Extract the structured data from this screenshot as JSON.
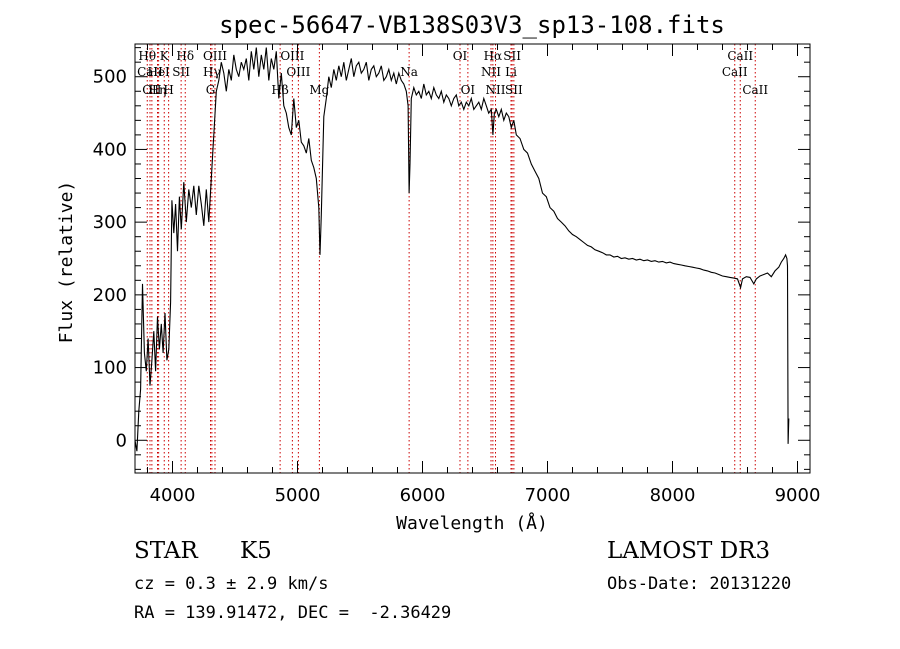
{
  "chart_data": {
    "type": "line",
    "title": "spec-56647-VB138S03V3_sp13-108.fits",
    "xlabel": "Wavelength (Å)",
    "ylabel": "Flux (relative)",
    "xlim": [
      3700,
      9100
    ],
    "ylim": [
      -45,
      545
    ],
    "xticks": [
      4000,
      5000,
      6000,
      7000,
      8000,
      9000
    ],
    "yticks": [
      0,
      100,
      200,
      300,
      400,
      500
    ],
    "line_color": "#000000",
    "marker_color": "#cc0000",
    "series": [
      {
        "name": "flux",
        "points": [
          [
            3700,
            0
          ],
          [
            3715,
            -15
          ],
          [
            3730,
            40
          ],
          [
            3745,
            70
          ],
          [
            3760,
            215
          ],
          [
            3775,
            120
          ],
          [
            3790,
            95
          ],
          [
            3805,
            140
          ],
          [
            3820,
            75
          ],
          [
            3835,
            110
          ],
          [
            3850,
            150
          ],
          [
            3865,
            95
          ],
          [
            3880,
            170
          ],
          [
            3895,
            125
          ],
          [
            3910,
            160
          ],
          [
            3925,
            120
          ],
          [
            3940,
            175
          ],
          [
            3955,
            110
          ],
          [
            3970,
            125
          ],
          [
            3985,
            190
          ],
          [
            3995,
            330
          ],
          [
            4010,
            285
          ],
          [
            4025,
            325
          ],
          [
            4040,
            260
          ],
          [
            4055,
            335
          ],
          [
            4070,
            290
          ],
          [
            4090,
            355
          ],
          [
            4110,
            300
          ],
          [
            4130,
            345
          ],
          [
            4150,
            320
          ],
          [
            4170,
            350
          ],
          [
            4190,
            310
          ],
          [
            4210,
            350
          ],
          [
            4230,
            325
          ],
          [
            4250,
            295
          ],
          [
            4270,
            345
          ],
          [
            4290,
            300
          ],
          [
            4310,
            360
          ],
          [
            4330,
            420
          ],
          [
            4350,
            480
          ],
          [
            4370,
            495
          ],
          [
            4390,
            520
          ],
          [
            4410,
            505
          ],
          [
            4430,
            480
          ],
          [
            4450,
            510
          ],
          [
            4470,
            495
          ],
          [
            4490,
            530
          ],
          [
            4510,
            510
          ],
          [
            4530,
            500
          ],
          [
            4550,
            520
          ],
          [
            4570,
            510
          ],
          [
            4590,
            525
          ],
          [
            4610,
            495
          ],
          [
            4630,
            535
          ],
          [
            4650,
            510
          ],
          [
            4670,
            540
          ],
          [
            4690,
            500
          ],
          [
            4710,
            530
          ],
          [
            4730,
            510
          ],
          [
            4750,
            540
          ],
          [
            4770,
            495
          ],
          [
            4790,
            525
          ],
          [
            4810,
            510
          ],
          [
            4830,
            535
          ],
          [
            4850,
            470
          ],
          [
            4870,
            505
          ],
          [
            4890,
            460
          ],
          [
            4910,
            450
          ],
          [
            4930,
            430
          ],
          [
            4950,
            420
          ],
          [
            4970,
            470
          ],
          [
            4990,
            430
          ],
          [
            5010,
            440
          ],
          [
            5030,
            410
          ],
          [
            5050,
            405
          ],
          [
            5070,
            395
          ],
          [
            5090,
            415
          ],
          [
            5110,
            385
          ],
          [
            5130,
            375
          ],
          [
            5150,
            360
          ],
          [
            5170,
            320
          ],
          [
            5180,
            255
          ],
          [
            5190,
            310
          ],
          [
            5210,
            445
          ],
          [
            5230,
            470
          ],
          [
            5250,
            500
          ],
          [
            5270,
            485
          ],
          [
            5290,
            510
          ],
          [
            5310,
            495
          ],
          [
            5330,
            515
          ],
          [
            5350,
            500
          ],
          [
            5370,
            520
          ],
          [
            5390,
            495
          ],
          [
            5410,
            510
          ],
          [
            5430,
            525
          ],
          [
            5450,
            500
          ],
          [
            5470,
            515
          ],
          [
            5490,
            520
          ],
          [
            5510,
            505
          ],
          [
            5530,
            510
          ],
          [
            5550,
            520
          ],
          [
            5570,
            495
          ],
          [
            5590,
            510
          ],
          [
            5610,
            515
          ],
          [
            5630,
            500
          ],
          [
            5650,
            505
          ],
          [
            5670,
            515
          ],
          [
            5690,
            495
          ],
          [
            5710,
            500
          ],
          [
            5730,
            510
          ],
          [
            5750,
            495
          ],
          [
            5770,
            505
          ],
          [
            5790,
            490
          ],
          [
            5810,
            505
          ],
          [
            5830,
            495
          ],
          [
            5850,
            490
          ],
          [
            5870,
            480
          ],
          [
            5885,
            460
          ],
          [
            5893,
            340
          ],
          [
            5900,
            380
          ],
          [
            5910,
            470
          ],
          [
            5930,
            485
          ],
          [
            5950,
            475
          ],
          [
            5970,
            480
          ],
          [
            5990,
            470
          ],
          [
            6010,
            490
          ],
          [
            6030,
            475
          ],
          [
            6050,
            480
          ],
          [
            6070,
            470
          ],
          [
            6090,
            485
          ],
          [
            6110,
            475
          ],
          [
            6130,
            470
          ],
          [
            6150,
            480
          ],
          [
            6170,
            465
          ],
          [
            6190,
            475
          ],
          [
            6210,
            470
          ],
          [
            6230,
            460
          ],
          [
            6250,
            470
          ],
          [
            6270,
            475
          ],
          [
            6290,
            460
          ],
          [
            6310,
            465
          ],
          [
            6330,
            455
          ],
          [
            6350,
            465
          ],
          [
            6370,
            460
          ],
          [
            6390,
            470
          ],
          [
            6410,
            455
          ],
          [
            6430,
            460
          ],
          [
            6450,
            465
          ],
          [
            6470,
            455
          ],
          [
            6490,
            470
          ],
          [
            6510,
            460
          ],
          [
            6530,
            450
          ],
          [
            6550,
            455
          ],
          [
            6563,
            420
          ],
          [
            6575,
            450
          ],
          [
            6590,
            455
          ],
          [
            6610,
            445
          ],
          [
            6630,
            455
          ],
          [
            6650,
            440
          ],
          [
            6670,
            450
          ],
          [
            6690,
            445
          ],
          [
            6710,
            430
          ],
          [
            6730,
            440
          ],
          [
            6750,
            420
          ],
          [
            6780,
            415
          ],
          [
            6810,
            400
          ],
          [
            6840,
            395
          ],
          [
            6870,
            380
          ],
          [
            6900,
            370
          ],
          [
            6930,
            360
          ],
          [
            6960,
            340
          ],
          [
            6990,
            335
          ],
          [
            7020,
            320
          ],
          [
            7050,
            315
          ],
          [
            7080,
            305
          ],
          [
            7110,
            300
          ],
          [
            7140,
            295
          ],
          [
            7170,
            288
          ],
          [
            7200,
            283
          ],
          [
            7230,
            280
          ],
          [
            7260,
            276
          ],
          [
            7290,
            272
          ],
          [
            7320,
            268
          ],
          [
            7350,
            266
          ],
          [
            7380,
            262
          ],
          [
            7410,
            260
          ],
          [
            7440,
            258
          ],
          [
            7470,
            255
          ],
          [
            7500,
            255
          ],
          [
            7530,
            252
          ],
          [
            7560,
            253
          ],
          [
            7590,
            250
          ],
          [
            7620,
            251
          ],
          [
            7650,
            249
          ],
          [
            7680,
            250
          ],
          [
            7710,
            248
          ],
          [
            7740,
            249
          ],
          [
            7770,
            247
          ],
          [
            7800,
            248
          ],
          [
            7830,
            246
          ],
          [
            7860,
            247
          ],
          [
            7890,
            245
          ],
          [
            7920,
            246
          ],
          [
            7950,
            244
          ],
          [
            7980,
            245
          ],
          [
            8010,
            243
          ],
          [
            8040,
            242
          ],
          [
            8070,
            241
          ],
          [
            8100,
            240
          ],
          [
            8130,
            239
          ],
          [
            8160,
            238
          ],
          [
            8190,
            237
          ],
          [
            8220,
            236
          ],
          [
            8250,
            234
          ],
          [
            8280,
            233
          ],
          [
            8310,
            231
          ],
          [
            8340,
            230
          ],
          [
            8370,
            228
          ],
          [
            8400,
            226
          ],
          [
            8430,
            225
          ],
          [
            8460,
            224
          ],
          [
            8490,
            223
          ],
          [
            8520,
            222
          ],
          [
            8545,
            210
          ],
          [
            8560,
            222
          ],
          [
            8590,
            225
          ],
          [
            8620,
            224
          ],
          [
            8650,
            215
          ],
          [
            8670,
            222
          ],
          [
            8700,
            226
          ],
          [
            8730,
            228
          ],
          [
            8760,
            230
          ],
          [
            8790,
            225
          ],
          [
            8820,
            233
          ],
          [
            8850,
            238
          ],
          [
            8870,
            245
          ],
          [
            8890,
            250
          ],
          [
            8905,
            255
          ],
          [
            8915,
            250
          ],
          [
            8920,
            240
          ],
          [
            8925,
            -5
          ],
          [
            8930,
            30
          ]
        ]
      }
    ],
    "line_markers": [
      {
        "label": "Hθ",
        "wavelength": 3798,
        "row": 1
      },
      {
        "label": "CaII",
        "wavelength": 3820,
        "row": 2
      },
      {
        "label": "OII",
        "wavelength": 3835,
        "row": 3
      },
      {
        "label": "Hη",
        "wavelength": 3880,
        "row": 3
      },
      {
        "label": "K",
        "wavelength": 3934,
        "row": 1
      },
      {
        "label": "HeI",
        "wavelength": 3889,
        "row": 2
      },
      {
        "label": "H",
        "wavelength": 3969,
        "row": 3
      },
      {
        "label": "Hδ",
        "wavelength": 4102,
        "row": 1
      },
      {
        "label": "SII",
        "wavelength": 4069,
        "row": 2
      },
      {
        "label": "OIII",
        "wavelength": 4340,
        "row": 1
      },
      {
        "label": "Hγ",
        "wavelength": 4315,
        "row": 2
      },
      {
        "label": "G",
        "wavelength": 4304,
        "row": 3
      },
      {
        "label": "Hβ",
        "wavelength": 4861,
        "row": 3
      },
      {
        "label": "OIII",
        "wavelength": 4959,
        "row": 1
      },
      {
        "label": "OIII",
        "wavelength": 5007,
        "row": 2
      },
      {
        "label": "Mg",
        "wavelength": 5175,
        "row": 3
      },
      {
        "label": "Na",
        "wavelength": 5893,
        "row": 2
      },
      {
        "label": "OI",
        "wavelength": 6300,
        "row": 1
      },
      {
        "label": "OI",
        "wavelength": 6363,
        "row": 3
      },
      {
        "label": "Hα",
        "wavelength": 6563,
        "row": 1
      },
      {
        "label": "NII",
        "wavelength": 6548,
        "row": 2
      },
      {
        "label": "NII",
        "wavelength": 6584,
        "row": 3
      },
      {
        "label": "SII",
        "wavelength": 6717,
        "row": 1
      },
      {
        "label": "Li",
        "wavelength": 6708,
        "row": 2
      },
      {
        "label": "SII",
        "wavelength": 6731,
        "row": 3
      },
      {
        "label": "CaII",
        "wavelength": 8542,
        "row": 1
      },
      {
        "label": "CaII",
        "wavelength": 8498,
        "row": 2
      },
      {
        "label": "CaII",
        "wavelength": 8662,
        "row": 3
      }
    ]
  },
  "info": {
    "object_class": "STAR",
    "subclass": "K5",
    "cz": "cz = 0.3 ± 2.9 km/s",
    "coords": "RA = 139.91472, DEC =  -2.36429",
    "survey": "LAMOST DR3",
    "obs_date": "Obs-Date: 20131220"
  }
}
